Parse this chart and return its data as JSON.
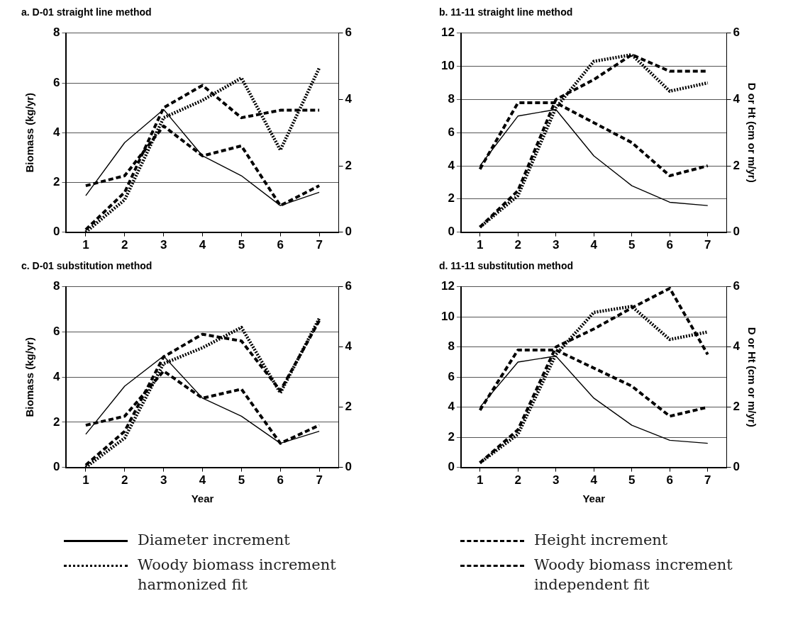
{
  "chart_data": [
    {
      "type": "line",
      "title": "a. D-01 straight line method",
      "ylabel": "Biomass (kg/yr)",
      "categories": [
        "1",
        "2",
        "3",
        "4",
        "5",
        "6",
        "7"
      ],
      "ylim": [
        0,
        8
      ],
      "yticks": [
        0,
        2,
        4,
        6,
        8
      ],
      "y2lim": [
        0,
        6
      ],
      "y2ticks": [
        0,
        2,
        4,
        6
      ],
      "grid": "y",
      "legend": "bottom",
      "marker": "none",
      "series": [
        {
          "name": "Diameter increment",
          "color": "#000000",
          "line_style": "solid",
          "axis": "y2",
          "values": [
            1.1,
            2.7,
            3.7,
            2.3,
            1.7,
            0.8,
            1.2
          ]
        },
        {
          "name": "Woody biomass increment harmonized fit",
          "color": "#000000",
          "line_style": "dotted",
          "values": [
            0,
            1.3,
            4.6,
            5.3,
            6.2,
            3.3,
            6.6
          ]
        },
        {
          "name": "Height increment",
          "color": "#000000",
          "line_style": "dashed",
          "axis": "y2",
          "values": [
            1.4,
            1.7,
            3.2,
            2.3,
            2.6,
            0.8,
            1.4
          ]
        },
        {
          "name": "Woody biomass increment independent fit",
          "color": "#000000",
          "line_style": "dashed",
          "values": [
            0.1,
            1.6,
            5,
            5.9,
            4.6,
            4.9,
            4.9
          ]
        }
      ]
    },
    {
      "type": "line",
      "title": "b. 11-11 straight line method",
      "y2label": "D or Ht (cm or m/yr)",
      "categories": [
        "1",
        "2",
        "3",
        "4",
        "5",
        "6",
        "7"
      ],
      "ylim": [
        0,
        12
      ],
      "yticks": [
        0,
        2,
        4,
        6,
        8,
        10,
        12
      ],
      "y2lim": [
        0,
        6
      ],
      "y2ticks": [
        0,
        2,
        4,
        6
      ],
      "grid": "y",
      "marker": "none",
      "series": [
        {
          "color": "#000000",
          "line_style": "solid",
          "axis": "y2",
          "values": [
            2,
            3.5,
            3.7,
            2.3,
            1.4,
            0.9,
            0.8
          ]
        },
        {
          "color": "#000000",
          "line_style": "dotted",
          "values": [
            0.3,
            2.2,
            7.5,
            10.3,
            10.7,
            8.5,
            9
          ]
        },
        {
          "color": "#000000",
          "line_style": "dashed",
          "axis": "y2",
          "values": [
            1.9,
            3.9,
            3.9,
            3.3,
            2.7,
            1.7,
            2
          ]
        },
        {
          "color": "#000000",
          "line_style": "dashed",
          "values": [
            0.3,
            2.5,
            8,
            9.2,
            10.7,
            9.7,
            9.7
          ]
        }
      ]
    },
    {
      "type": "line",
      "title": "c. D-01 substitution method",
      "ylabel": "Biomass (kg/yr)",
      "xlabel": "Year",
      "categories": [
        "1",
        "2",
        "3",
        "4",
        "5",
        "6",
        "7"
      ],
      "ylim": [
        0,
        8
      ],
      "yticks": [
        0,
        2,
        4,
        6,
        8
      ],
      "y2lim": [
        0,
        6
      ],
      "y2ticks": [
        0,
        2,
        4,
        6
      ],
      "grid": "y",
      "marker": "none",
      "series": [
        {
          "color": "#000000",
          "line_style": "solid",
          "axis": "y2",
          "values": [
            1.1,
            2.7,
            3.7,
            2.3,
            1.7,
            0.8,
            1.2
          ]
        },
        {
          "color": "#000000",
          "line_style": "dotted",
          "values": [
            0,
            1.3,
            4.6,
            5.3,
            6.2,
            3.3,
            6.6
          ]
        },
        {
          "color": "#000000",
          "line_style": "dashed",
          "axis": "y2",
          "values": [
            1.4,
            1.7,
            3.2,
            2.3,
            2.6,
            0.8,
            1.4
          ]
        },
        {
          "color": "#000000",
          "line_style": "dashed",
          "values": [
            0.1,
            1.6,
            4.9,
            5.9,
            5.6,
            3.4,
            6.5
          ]
        }
      ]
    },
    {
      "type": "line",
      "title": "d. 11-11 substitution method",
      "y2label": "D or Ht (cm or m/yr)",
      "xlabel": "Year",
      "categories": [
        "1",
        "2",
        "3",
        "4",
        "5",
        "6",
        "7"
      ],
      "ylim": [
        0,
        12
      ],
      "yticks": [
        0,
        2,
        4,
        6,
        8,
        10,
        12
      ],
      "y2lim": [
        0,
        6
      ],
      "y2ticks": [
        0,
        2,
        4,
        6
      ],
      "grid": "y",
      "marker": "none",
      "series": [
        {
          "color": "#000000",
          "line_style": "solid",
          "axis": "y2",
          "values": [
            2,
            3.5,
            3.7,
            2.3,
            1.4,
            0.9,
            0.8
          ]
        },
        {
          "color": "#000000",
          "line_style": "dotted",
          "values": [
            0.3,
            2.2,
            7.5,
            10.3,
            10.7,
            8.5,
            9
          ]
        },
        {
          "color": "#000000",
          "line_style": "dashed",
          "axis": "y2",
          "values": [
            1.9,
            3.9,
            3.9,
            3.3,
            2.7,
            1.7,
            2
          ]
        },
        {
          "color": "#000000",
          "line_style": "dashed",
          "values": [
            0.3,
            2.5,
            8,
            9.2,
            10.6,
            11.9,
            7.5
          ]
        }
      ]
    }
  ]
}
